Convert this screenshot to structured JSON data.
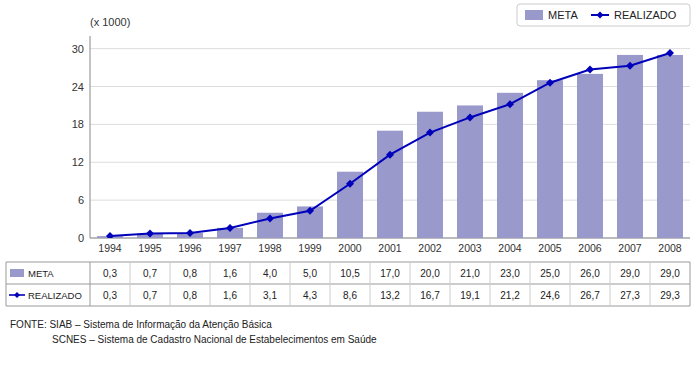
{
  "chart_data": {
    "type": "bar",
    "categories": [
      "1994",
      "1995",
      "1996",
      "1997",
      "1998",
      "1999",
      "2000",
      "2001",
      "2002",
      "2003",
      "2004",
      "2005",
      "2006",
      "2007",
      "2008"
    ],
    "series": [
      {
        "name": "META",
        "type": "bar",
        "color": "#9999cc",
        "values": [
          0.3,
          0.7,
          0.8,
          1.6,
          4.0,
          5.0,
          10.5,
          17.0,
          20.0,
          21.0,
          23.0,
          25.0,
          26.0,
          29.0,
          29.0
        ],
        "value_labels": [
          "0,3",
          "0,7",
          "0,8",
          "1,6",
          "4,0",
          "5,0",
          "10,5",
          "17,0",
          "20,0",
          "21,0",
          "23,0",
          "25,0",
          "26,0",
          "29,0",
          "29,0"
        ]
      },
      {
        "name": "REALIZADO",
        "type": "line",
        "color": "#0000bb",
        "marker": "diamond",
        "values": [
          0.3,
          0.7,
          0.8,
          1.6,
          3.1,
          4.3,
          8.6,
          13.2,
          16.7,
          19.1,
          21.2,
          24.6,
          26.7,
          27.3,
          29.3
        ],
        "value_labels": [
          "0,3",
          "0,7",
          "0,8",
          "1,6",
          "3,1",
          "4,3",
          "8,6",
          "13,2",
          "16,7",
          "19,1",
          "21,2",
          "24,6",
          "26,7",
          "27,3",
          "29,3"
        ]
      }
    ],
    "ylabel": "(x 1000)",
    "ylim": [
      0,
      32
    ],
    "yticks": [
      0,
      6,
      12,
      18,
      24,
      30
    ],
    "grid": true,
    "legend": "upper right",
    "annotations": [
      "FONTE:  SIAB – Sistema de Informação da Atenção Básica",
      "SCNES – Sistema de Cadastro Nacional de Estabelecimentos em Saúde"
    ]
  }
}
